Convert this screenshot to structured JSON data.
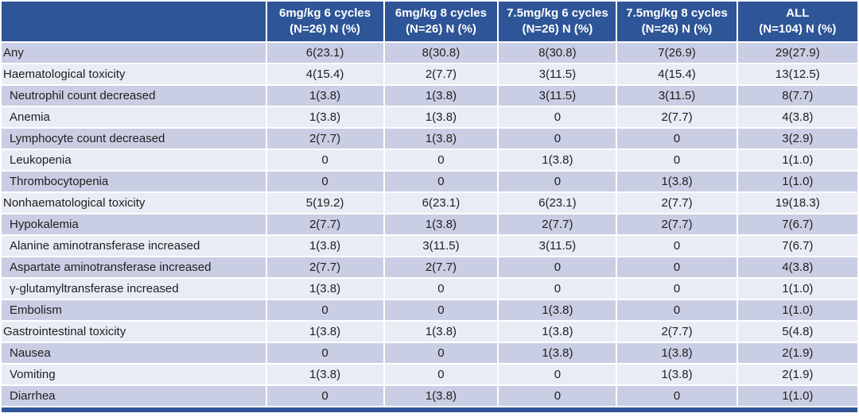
{
  "table": {
    "header": {
      "row_label_header": "",
      "columns": [
        {
          "line1": "6mg/kg 6 cycles",
          "line2": "(N=26) N (%)"
        },
        {
          "line1": "6mg/kg 8 cycles",
          "line2": "(N=26) N (%)"
        },
        {
          "line1": "7.5mg/kg 6 cycles",
          "line2": "(N=26) N (%)"
        },
        {
          "line1": "7.5mg/kg 8 cycles",
          "line2": "(N=26) N (%)"
        },
        {
          "line1": "ALL",
          "line2": "(N=104) N (%)"
        }
      ]
    },
    "rows": [
      {
        "label": "Any",
        "level": 0,
        "values": [
          "6(23.1)",
          "8(30.8)",
          "8(30.8)",
          "7(26.9)",
          "29(27.9)"
        ]
      },
      {
        "label": "Haematological toxicity",
        "level": 0,
        "values": [
          "4(15.4)",
          "2(7.7)",
          "3(11.5)",
          "4(15.4)",
          "13(12.5)"
        ]
      },
      {
        "label": "Neutrophil count decreased",
        "level": 1,
        "values": [
          "1(3.8)",
          "1(3.8)",
          "3(11.5)",
          "3(11.5)",
          "8(7.7)"
        ]
      },
      {
        "label": "Anemia",
        "level": 1,
        "values": [
          "1(3.8)",
          "1(3.8)",
          "0",
          "2(7.7)",
          "4(3.8)"
        ]
      },
      {
        "label": "Lymphocyte count decreased",
        "level": 1,
        "values": [
          "2(7.7)",
          "1(3.8)",
          "0",
          "0",
          "3(2.9)"
        ]
      },
      {
        "label": "Leukopenia",
        "level": 1,
        "values": [
          "0",
          "0",
          "1(3.8)",
          "0",
          "1(1.0)"
        ]
      },
      {
        "label": "Thrombocytopenia",
        "level": 1,
        "values": [
          "0",
          "0",
          "0",
          "1(3.8)",
          "1(1.0)"
        ]
      },
      {
        "label": "Nonhaematological toxicity",
        "level": 0,
        "values": [
          "5(19.2)",
          "6(23.1)",
          "6(23.1)",
          "2(7.7)",
          "19(18.3)"
        ]
      },
      {
        "label": "Hypokalemia",
        "level": 1,
        "values": [
          "2(7.7)",
          "1(3.8)",
          "2(7.7)",
          "2(7.7)",
          "7(6.7)"
        ]
      },
      {
        "label": "Alanine aminotransferase increased",
        "level": 1,
        "values": [
          "1(3.8)",
          "3(11.5)",
          "3(11.5)",
          "0",
          "7(6.7)"
        ]
      },
      {
        "label": "Aspartate aminotransferase increased",
        "level": 1,
        "values": [
          "2(7.7)",
          "2(7.7)",
          "0",
          "0",
          "4(3.8)"
        ]
      },
      {
        "label": "γ-glutamyltransferase increased",
        "level": 1,
        "values": [
          "1(3.8)",
          "0",
          "0",
          "0",
          "1(1.0)"
        ]
      },
      {
        "label": "Embolism",
        "level": 1,
        "values": [
          "0",
          "0",
          "1(3.8)",
          "0",
          "1(1.0)"
        ]
      },
      {
        "label": "Gastrointestinal toxicity",
        "level": 0,
        "values": [
          "1(3.8)",
          "1(3.8)",
          "1(3.8)",
          "2(7.7)",
          "5(4.8)"
        ]
      },
      {
        "label": "Nausea",
        "level": 1,
        "values": [
          "0",
          "0",
          "1(3.8)",
          "1(3.8)",
          "2(1.9)"
        ]
      },
      {
        "label": "Vomiting",
        "level": 1,
        "values": [
          "1(3.8)",
          "0",
          "0",
          "1(3.8)",
          "2(1.9)"
        ]
      },
      {
        "label": "Diarrhea",
        "level": 1,
        "values": [
          "0",
          "1(3.8)",
          "0",
          "0",
          "1(1.0)"
        ]
      }
    ]
  },
  "colors": {
    "header_bg": "#2E5597",
    "band_dark": "#C9CEE4",
    "band_light": "#E9EBF5",
    "header_text": "#FFFFFF",
    "body_text": "#1F1F1F"
  }
}
